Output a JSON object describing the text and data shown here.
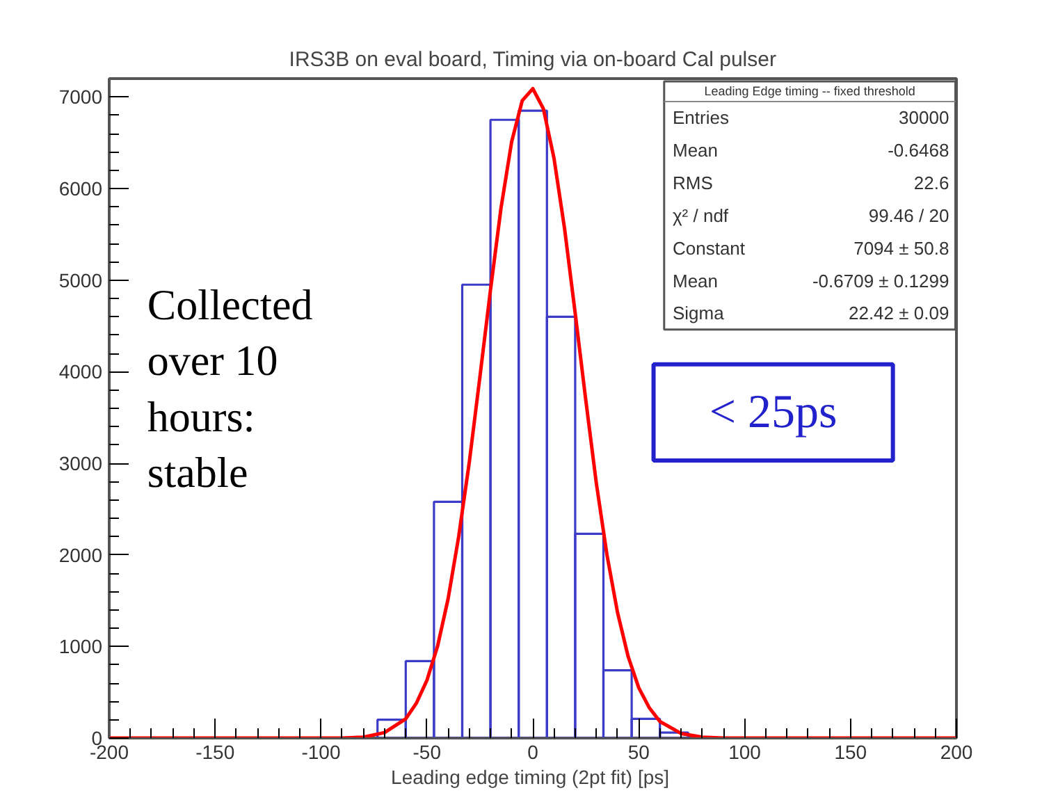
{
  "chart_data": {
    "type": "histogram",
    "title": "IRS3B on eval board, Timing via on-board Cal pulser",
    "xlabel": "Leading edge timing (2pt fit)  [ps]",
    "bins": [
      -86.67,
      -73.33,
      -60,
      -46.67,
      -33.33,
      -20,
      -6.67,
      6.67,
      20,
      33.33,
      46.67,
      60,
      73.33,
      86.67
    ],
    "series": [
      {
        "color": "#3c3cc8",
        "values": [
          null,
          200,
          840,
          2580,
          4950,
          6750,
          6850,
          4600,
          2230,
          740,
          210,
          60,
          null
        ]
      },
      {
        "type": "line",
        "color": "#ff0000",
        "x": [
          -200,
          -90,
          -80,
          -70,
          -60,
          -55,
          -50,
          -45,
          -40,
          -35,
          -30,
          -25,
          -20,
          -15,
          -10,
          -5,
          0,
          5,
          10,
          15,
          20,
          25,
          30,
          35,
          40,
          45,
          50,
          55,
          60,
          70,
          80,
          90,
          200
        ],
        "values": [
          0,
          0,
          10,
          60,
          210,
          380,
          630,
          1000,
          1520,
          2200,
          3010,
          3940,
          4890,
          5790,
          6510,
          6960,
          7090,
          6870,
          6330,
          5560,
          4640,
          3690,
          2780,
          2000,
          1370,
          890,
          550,
          330,
          180,
          50,
          10,
          0,
          0
        ]
      }
    ],
    "xlim": [
      -200,
      200
    ],
    "ylim": [
      0,
      7200
    ],
    "xticks": [
      -200,
      -150,
      -100,
      -50,
      0,
      50,
      100,
      150,
      200
    ],
    "yticks": [
      0,
      1000,
      2000,
      3000,
      4000,
      5000,
      6000,
      7000
    ],
    "grid": false,
    "annotations": [
      "Leading Edge timing -- fixed threshold",
      "Entries",
      "30000",
      "Mean",
      "-0.6468",
      "RMS",
      "22.6",
      "χ² / ndf",
      "99.46 / 20",
      "Constant",
      "7094 ± 50.8",
      "Mean",
      "-0.6709 ± 0.1299",
      "Sigma",
      "22.42 ± 0.09",
      "Collected\nover 10\nhours:\nstable",
      "< 25ps"
    ]
  }
}
